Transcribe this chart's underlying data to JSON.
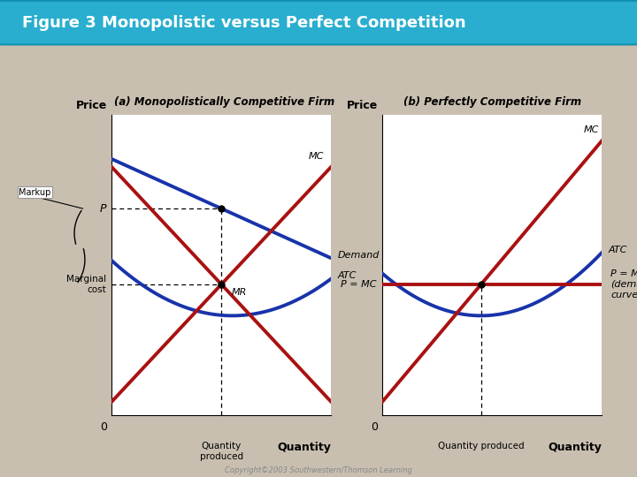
{
  "title": "Figure 3 Monopolistic versus Perfect Competition",
  "title_bg": "#29AECF",
  "title_text_color": "white",
  "bg_color": "#C8BFB0",
  "panel_bg": "white",
  "panel_a_title": "(a) Monopolistically Competitive Firm",
  "panel_b_title": "(b) Perfectly Competitive Firm",
  "blue_color": "#1833AA",
  "red_color": "#AA1111",
  "copyright": "Copyright©2003 Southwestern/Thomson Learning"
}
